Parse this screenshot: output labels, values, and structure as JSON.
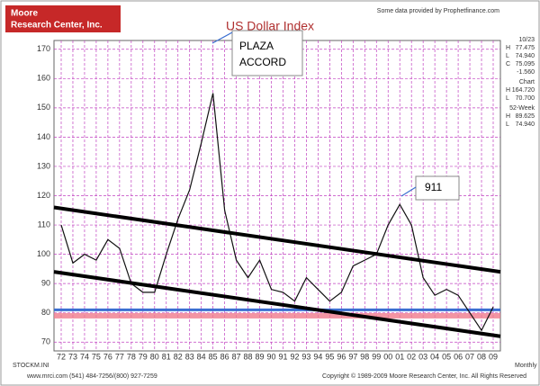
{
  "chart_data": {
    "type": "line",
    "title": "US Dollar Index",
    "logo": [
      "Moore",
      "Research Center, Inc."
    ],
    "source": "Some data provided by Prophetfinance.com",
    "categories": [
      "72",
      "73",
      "74",
      "75",
      "76",
      "77",
      "78",
      "79",
      "80",
      "81",
      "82",
      "83",
      "84",
      "85",
      "86",
      "87",
      "88",
      "89",
      "90",
      "91",
      "92",
      "93",
      "94",
      "95",
      "96",
      "97",
      "98",
      "99",
      "00",
      "01",
      "02",
      "03",
      "04",
      "05",
      "06",
      "07",
      "08",
      "09"
    ],
    "series": [
      {
        "name": "US Dollar Index",
        "color": "#111111",
        "values": [
          110,
          97,
          100,
          98,
          105,
          102,
          90,
          87,
          87,
          100,
          112,
          122,
          138,
          155,
          115,
          98,
          92,
          98,
          88,
          87,
          84,
          92,
          88,
          84,
          87,
          96,
          98,
          100,
          110,
          117,
          110,
          92,
          86,
          88,
          86,
          80,
          74,
          82
        ]
      }
    ],
    "ylim": [
      67,
      173
    ],
    "yticks": [
      70,
      80,
      90,
      100,
      110,
      120,
      130,
      140,
      150,
      160,
      170
    ],
    "grid": true,
    "trend_lines": [
      {
        "start": 116,
        "end": 94,
        "color": "#000000"
      },
      {
        "start": 94,
        "end": 72,
        "color": "#000000"
      }
    ],
    "support_line": {
      "value": 81,
      "color": "#3b6fd1"
    },
    "support_band": {
      "value": 79,
      "color": "#f07a8c"
    },
    "annotations": [
      "PLAZA ACCORD",
      "911"
    ],
    "stats": [
      {
        "label": "10/23",
        "rows": [
          {
            "key": "H",
            "value": "77.475"
          },
          {
            "key": "L",
            "value": "74.940"
          },
          {
            "key": "C",
            "value": "75.095"
          },
          {
            "key": "",
            "value": "-1.560"
          }
        ]
      },
      {
        "label": "Chart",
        "rows": [
          {
            "key": "H",
            "value": "164.720"
          },
          {
            "key": "L",
            "value": "70.700"
          }
        ]
      },
      {
        "label": "52-Week",
        "rows": [
          {
            "key": "H",
            "value": "89.625"
          },
          {
            "key": "L",
            "value": "74.940"
          }
        ]
      }
    ],
    "footer_left": "STOCKM.INI",
    "footer_right": "Monthly",
    "contact": "www.mrci.com   (541) 484-7256/(800) 927-7259",
    "copyright": "Copyright © 1989-2009 Moore Research Center, Inc. All Rights Reserved"
  }
}
